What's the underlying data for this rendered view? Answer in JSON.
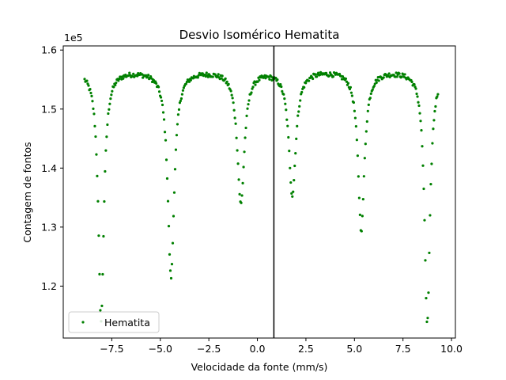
{
  "chart_data": {
    "type": "scatter",
    "title": "Desvio Isomérico Hematita",
    "xlabel": "Velocidade da fonte (mm/s)",
    "ylabel": "Contagem de fontos",
    "y_multiplier_label": "1e5",
    "xlim": [
      -10.0,
      10.2
    ],
    "ylim": [
      1.112,
      1.607
    ],
    "x_ticks": [
      -7.5,
      -5.0,
      -2.5,
      0.0,
      2.5,
      5.0,
      7.5,
      10.0
    ],
    "x_tick_labels": [
      "−7.5",
      "−5.0",
      "−2.5",
      "0.0",
      "2.5",
      "5.0",
      "7.5",
      "10.0"
    ],
    "y_ticks": [
      1.2,
      1.3,
      1.4,
      1.5,
      1.6
    ],
    "y_tick_labels": [
      "1.2",
      "1.3",
      "1.4",
      "1.5",
      "1.6"
    ],
    "y_unit_scale": 100000,
    "legend": {
      "position": "lower-left",
      "entries": [
        "Hematita"
      ]
    },
    "grid": false,
    "vertical_line": {
      "x": 0.85,
      "color": "#000000"
    },
    "series": [
      {
        "name": "Hematita",
        "color": "#008000",
        "baseline": 1.567,
        "x_range": [
          -8.9,
          9.3
        ],
        "n_points": 450,
        "absorption_lines": [
          {
            "center": -8.05,
            "depth": 0.425,
            "width": 0.17
          },
          {
            "center": -4.45,
            "depth": 0.35,
            "width": 0.2
          },
          {
            "center": -0.85,
            "depth": 0.225,
            "width": 0.22
          },
          {
            "center": 1.8,
            "depth": 0.21,
            "width": 0.22
          },
          {
            "center": 5.35,
            "depth": 0.27,
            "width": 0.2
          },
          {
            "center": 8.75,
            "depth": 0.43,
            "width": 0.17
          }
        ]
      }
    ]
  }
}
